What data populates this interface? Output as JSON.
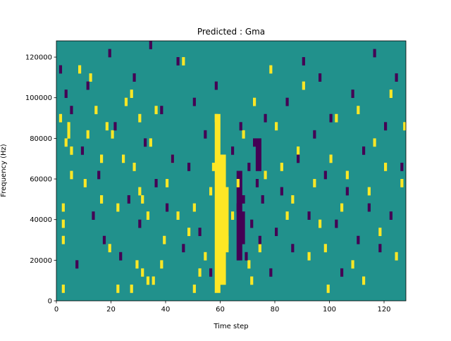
{
  "chart_data": {
    "type": "heatmap",
    "title": "Predicted : Gma",
    "xlabel": "Time step",
    "ylabel": "Frequency (Hz)",
    "xlim": [
      0,
      128
    ],
    "ylim": [
      0,
      128000
    ],
    "x_ticks": [
      0,
      20,
      40,
      60,
      80,
      100,
      120
    ],
    "y_ticks": [
      0,
      20000,
      40000,
      60000,
      80000,
      100000,
      120000
    ],
    "x_tick_labels": [
      "0",
      "20",
      "40",
      "60",
      "80",
      "100",
      "120"
    ],
    "y_tick_labels": [
      "0",
      "20000",
      "40000",
      "60000",
      "80000",
      "100000",
      "120000"
    ],
    "background_value": 0,
    "colors": {
      "background": "#21918c",
      "high": "#fde725",
      "low": "#440154"
    },
    "bin_height_hz": 4000,
    "time_bins": 128,
    "freq_bins": 32,
    "high_cells": [
      [
        1,
        88000
      ],
      [
        2,
        4000
      ],
      [
        2,
        28000
      ],
      [
        2,
        36000
      ],
      [
        2,
        44000
      ],
      [
        3,
        76000
      ],
      [
        4,
        80000
      ],
      [
        4,
        84000
      ],
      [
        5,
        60000
      ],
      [
        5,
        72000
      ],
      [
        8,
        112000
      ],
      [
        10,
        56000
      ],
      [
        11,
        80000
      ],
      [
        12,
        108000
      ],
      [
        14,
        92000
      ],
      [
        16,
        48000
      ],
      [
        16,
        68000
      ],
      [
        18,
        84000
      ],
      [
        19,
        24000
      ],
      [
        20,
        80000
      ],
      [
        22,
        4000
      ],
      [
        22,
        44000
      ],
      [
        24,
        68000
      ],
      [
        25,
        96000
      ],
      [
        27,
        4000
      ],
      [
        27,
        100000
      ],
      [
        28,
        64000
      ],
      [
        29,
        16000
      ],
      [
        30,
        52000
      ],
      [
        30,
        88000
      ],
      [
        31,
        12000
      ],
      [
        31,
        48000
      ],
      [
        33,
        8000
      ],
      [
        33,
        40000
      ],
      [
        34,
        76000
      ],
      [
        35,
        8000
      ],
      [
        36,
        92000
      ],
      [
        38,
        16000
      ],
      [
        39,
        28000
      ],
      [
        40,
        56000
      ],
      [
        42,
        68000
      ],
      [
        44,
        40000
      ],
      [
        46,
        116000
      ],
      [
        48,
        32000
      ],
      [
        50,
        4000
      ],
      [
        50,
        44000
      ],
      [
        52,
        12000
      ],
      [
        54,
        20000
      ],
      [
        56,
        52000
      ],
      [
        57,
        64000
      ],
      [
        58,
        88000
      ],
      [
        59,
        44000
      ],
      [
        60,
        60000
      ],
      [
        60,
        36000
      ],
      [
        62,
        28000
      ],
      [
        64,
        40000
      ],
      [
        66,
        56000
      ],
      [
        68,
        80000
      ],
      [
        70,
        16000
      ],
      [
        71,
        8000
      ],
      [
        72,
        96000
      ],
      [
        74,
        24000
      ],
      [
        76,
        60000
      ],
      [
        78,
        112000
      ],
      [
        80,
        84000
      ],
      [
        82,
        64000
      ],
      [
        84,
        40000
      ],
      [
        86,
        48000
      ],
      [
        88,
        72000
      ],
      [
        90,
        104000
      ],
      [
        92,
        20000
      ],
      [
        94,
        56000
      ],
      [
        96,
        36000
      ],
      [
        98,
        24000
      ],
      [
        99,
        4000
      ],
      [
        100,
        68000
      ],
      [
        102,
        88000
      ],
      [
        104,
        44000
      ],
      [
        106,
        60000
      ],
      [
        108,
        16000
      ],
      [
        110,
        92000
      ],
      [
        112,
        8000
      ],
      [
        114,
        52000
      ],
      [
        116,
        76000
      ],
      [
        118,
        32000
      ],
      [
        120,
        64000
      ],
      [
        122,
        100000
      ],
      [
        124,
        20000
      ],
      [
        126,
        56000
      ],
      [
        127,
        84000
      ]
    ],
    "low_cells": [
      [
        1,
        112000
      ],
      [
        3,
        100000
      ],
      [
        5,
        92000
      ],
      [
        7,
        16000
      ],
      [
        9,
        72000
      ],
      [
        11,
        104000
      ],
      [
        13,
        40000
      ],
      [
        15,
        60000
      ],
      [
        17,
        28000
      ],
      [
        19,
        120000
      ],
      [
        21,
        84000
      ],
      [
        23,
        20000
      ],
      [
        26,
        48000
      ],
      [
        28,
        108000
      ],
      [
        30,
        36000
      ],
      [
        32,
        76000
      ],
      [
        34,
        124000
      ],
      [
        36,
        56000
      ],
      [
        38,
        92000
      ],
      [
        40,
        44000
      ],
      [
        42,
        68000
      ],
      [
        44,
        116000
      ],
      [
        46,
        24000
      ],
      [
        48,
        64000
      ],
      [
        50,
        96000
      ],
      [
        52,
        32000
      ],
      [
        54,
        80000
      ],
      [
        56,
        12000
      ],
      [
        58,
        104000
      ],
      [
        64,
        72000
      ],
      [
        66,
        44000
      ],
      [
        67,
        84000
      ],
      [
        68,
        48000
      ],
      [
        69,
        20000
      ],
      [
        70,
        64000
      ],
      [
        71,
        36000
      ],
      [
        72,
        76000
      ],
      [
        73,
        56000
      ],
      [
        74,
        28000
      ],
      [
        75,
        48000
      ],
      [
        76,
        88000
      ],
      [
        78,
        12000
      ],
      [
        80,
        32000
      ],
      [
        82,
        52000
      ],
      [
        84,
        96000
      ],
      [
        86,
        24000
      ],
      [
        88,
        68000
      ],
      [
        90,
        116000
      ],
      [
        92,
        40000
      ],
      [
        94,
        80000
      ],
      [
        96,
        108000
      ],
      [
        98,
        60000
      ],
      [
        100,
        88000
      ],
      [
        102,
        36000
      ],
      [
        104,
        12000
      ],
      [
        106,
        52000
      ],
      [
        108,
        100000
      ],
      [
        110,
        28000
      ],
      [
        112,
        72000
      ],
      [
        114,
        44000
      ],
      [
        116,
        120000
      ],
      [
        118,
        24000
      ],
      [
        120,
        84000
      ],
      [
        122,
        40000
      ],
      [
        124,
        108000
      ],
      [
        126,
        64000
      ]
    ],
    "high_bands": [
      {
        "t_start": 58,
        "t_end": 60,
        "f_start": 4000,
        "f_end": 92000
      },
      {
        "t_start": 59,
        "t_end": 62,
        "f_start": 8000,
        "f_end": 72000
      },
      {
        "t_start": 60,
        "t_end": 63,
        "f_start": 24000,
        "f_end": 56000
      }
    ],
    "low_bands": [
      {
        "t_start": 66,
        "t_end": 68,
        "f_start": 20000,
        "f_end": 64000
      },
      {
        "t_start": 73,
        "t_end": 75,
        "f_start": 64000,
        "f_end": 80000
      },
      {
        "t_start": 68,
        "t_end": 69,
        "f_start": 28000,
        "f_end": 44000
      }
    ]
  }
}
